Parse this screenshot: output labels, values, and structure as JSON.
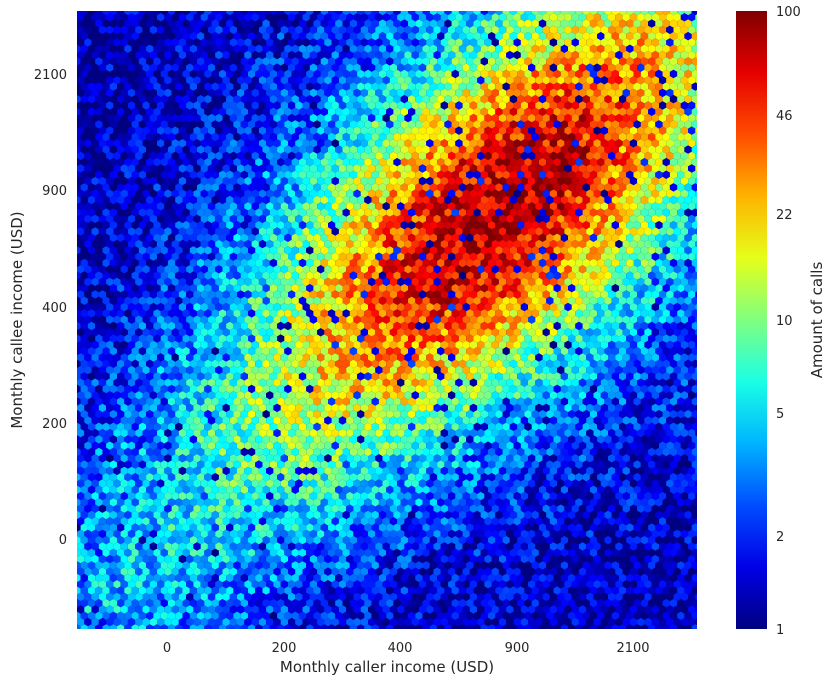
{
  "chart_data": {
    "type": "heatmap",
    "subtype": "hexbin",
    "colormap": "jet",
    "xlabel": "Monthly caller income (USD)",
    "ylabel": "Monthly callee income (USD)",
    "x_ticks": [
      "0",
      "200",
      "400",
      "900",
      "2100"
    ],
    "y_ticks": [
      "0",
      "200",
      "400",
      "900",
      "2100"
    ],
    "colorbar": {
      "label": "Amount of calls",
      "scale": "log",
      "range": [
        1,
        100
      ],
      "ticks": [
        "1",
        "2",
        "5",
        "10",
        "22",
        "46",
        "100"
      ]
    },
    "density_model": {
      "diagonal_peak_calls": 60,
      "peak_x_value": 600,
      "peak_y_value": 600,
      "description": "Density concentrated along the diagonal (caller income ≈ callee income), highest around 400–900 USD, decreasing toward low incomes and the off-diagonal corners."
    },
    "grid": false
  }
}
